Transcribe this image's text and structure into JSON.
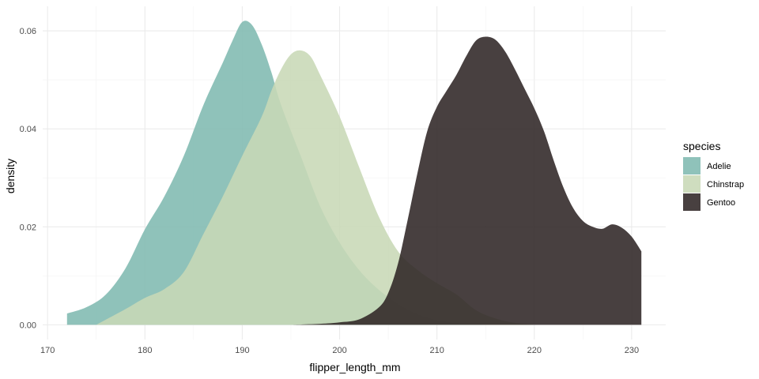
{
  "chart_data": {
    "type": "area",
    "subtype": "density",
    "xlabel": "flipper_length_mm",
    "ylabel": "density",
    "xlim": [
      169.5,
      233.5
    ],
    "ylim": [
      -0.003,
      0.065
    ],
    "x_ticks": [
      170,
      180,
      190,
      200,
      210,
      220,
      230
    ],
    "x_tick_labels": [
      "170",
      "180",
      "190",
      "200",
      "210",
      "220",
      "230"
    ],
    "y_ticks": [
      0.0,
      0.02,
      0.04,
      0.06
    ],
    "y_tick_labels": [
      "0.00",
      "0.02",
      "0.04",
      "0.06"
    ],
    "grid": true,
    "legend": {
      "title": "species",
      "position": "right"
    },
    "series": [
      {
        "name": "Adelie",
        "color": "#7fb9b0",
        "points": [
          [
            172,
            0.0023
          ],
          [
            174,
            0.0036
          ],
          [
            176,
            0.0062
          ],
          [
            178,
            0.0115
          ],
          [
            180,
            0.0195
          ],
          [
            182,
            0.0262
          ],
          [
            184,
            0.0345
          ],
          [
            186,
            0.0448
          ],
          [
            188,
            0.0535
          ],
          [
            189,
            0.058
          ],
          [
            190,
            0.0618
          ],
          [
            191,
            0.0612
          ],
          [
            192,
            0.0572
          ],
          [
            193,
            0.0515
          ],
          [
            194,
            0.0448
          ],
          [
            196,
            0.0345
          ],
          [
            198,
            0.0242
          ],
          [
            200,
            0.0168
          ],
          [
            202,
            0.0112
          ],
          [
            204,
            0.0072
          ],
          [
            206,
            0.0043
          ],
          [
            208,
            0.0022
          ],
          [
            210,
            0.001
          ],
          [
            212,
            0.0004
          ],
          [
            214,
            0.0001
          ],
          [
            215,
            0
          ]
        ]
      },
      {
        "name": "Chinstrap",
        "color": "#c8d8b6",
        "points": [
          [
            175,
            0
          ],
          [
            178,
            0.0032
          ],
          [
            180,
            0.0055
          ],
          [
            182,
            0.0073
          ],
          [
            184,
            0.0108
          ],
          [
            186,
            0.0185
          ],
          [
            188,
            0.0262
          ],
          [
            190,
            0.0345
          ],
          [
            192,
            0.0425
          ],
          [
            193,
            0.0478
          ],
          [
            194,
            0.0522
          ],
          [
            195,
            0.0552
          ],
          [
            196,
            0.056
          ],
          [
            197,
            0.0548
          ],
          [
            198,
            0.051
          ],
          [
            200,
            0.0425
          ],
          [
            202,
            0.0322
          ],
          [
            204,
            0.0222
          ],
          [
            206,
            0.015
          ],
          [
            208,
            0.0112
          ],
          [
            210,
            0.0085
          ],
          [
            212,
            0.0062
          ],
          [
            214,
            0.003
          ],
          [
            216,
            0.0013
          ],
          [
            218,
            0.0004
          ],
          [
            220,
            0
          ]
        ]
      },
      {
        "name": "Gentoo",
        "color": "#2f2625",
        "points": [
          [
            195,
            0
          ],
          [
            198,
            0.0002
          ],
          [
            200,
            0.0005
          ],
          [
            202,
            0.0011
          ],
          [
            204,
            0.0035
          ],
          [
            205,
            0.0065
          ],
          [
            206,
            0.0125
          ],
          [
            207,
            0.0215
          ],
          [
            208,
            0.031
          ],
          [
            209,
            0.0395
          ],
          [
            210,
            0.0445
          ],
          [
            211,
            0.0478
          ],
          [
            212,
            0.051
          ],
          [
            213,
            0.0548
          ],
          [
            214,
            0.058
          ],
          [
            215,
            0.0588
          ],
          [
            216,
            0.0582
          ],
          [
            217,
            0.0558
          ],
          [
            218,
            0.0522
          ],
          [
            219,
            0.0482
          ],
          [
            220,
            0.0442
          ],
          [
            221,
            0.0395
          ],
          [
            222,
            0.0335
          ],
          [
            223,
            0.028
          ],
          [
            224,
            0.0238
          ],
          [
            225,
            0.0212
          ],
          [
            226,
            0.02
          ],
          [
            227,
            0.0196
          ],
          [
            228,
            0.0205
          ],
          [
            229,
            0.0198
          ],
          [
            230,
            0.018
          ],
          [
            231,
            0.015
          ]
        ]
      }
    ]
  }
}
